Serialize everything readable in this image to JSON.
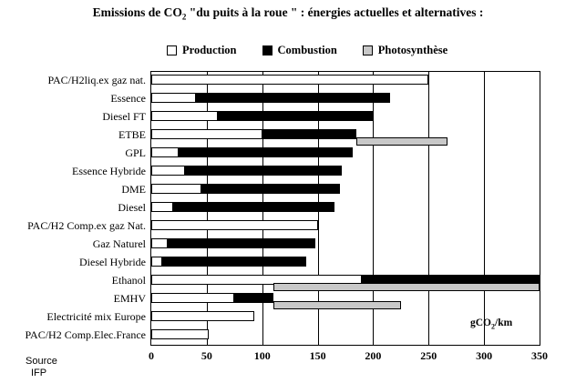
{
  "title": {
    "pre": "Emissions de CO",
    "sub": "2",
    "post": " \"du puits à la roue \" : énergies actuelles et alternatives :"
  },
  "legend": [
    {
      "label": "Production",
      "color": "#ffffff"
    },
    {
      "label": "Combustion",
      "color": "#000000"
    },
    {
      "label": "Photosynthèse",
      "color": "#c8c8c8"
    }
  ],
  "axis": {
    "ticks": [
      0,
      50,
      100,
      150,
      200,
      250,
      300,
      350
    ],
    "unit_pre": "gCO",
    "unit_sub": "2",
    "unit_post": "/km"
  },
  "source": {
    "line1": "Source",
    "line2": "IFP"
  },
  "chart_data": {
    "type": "bar",
    "orientation": "horizontal",
    "stacked": true,
    "title": "Emissions de CO2 \"du puits à la roue \" : énergies actuelles et alternatives :",
    "xlabel": "gCO2/km",
    "xlim": [
      0,
      350
    ],
    "grid": true,
    "legend_position": "top",
    "series_names": [
      "Production",
      "Combustion",
      "Photosynthèse"
    ],
    "rows": [
      {
        "label": "PAC/H2liq.ex gaz nat.",
        "production": [
          0,
          250
        ],
        "combustion": null,
        "photosynthese": null
      },
      {
        "label": "Essence",
        "production": [
          0,
          40
        ],
        "combustion": [
          40,
          215
        ],
        "photosynthese": null
      },
      {
        "label": "Diesel FT",
        "production": [
          0,
          60
        ],
        "combustion": [
          60,
          200
        ],
        "photosynthese": null
      },
      {
        "label": "ETBE",
        "production": [
          0,
          100
        ],
        "combustion": [
          100,
          185
        ],
        "photosynthese": [
          185,
          267
        ]
      },
      {
        "label": "GPL",
        "production": [
          0,
          25
        ],
        "combustion": [
          25,
          182
        ],
        "photosynthese": null
      },
      {
        "label": "Essence Hybride",
        "production": [
          0,
          30
        ],
        "combustion": [
          30,
          172
        ],
        "photosynthese": null
      },
      {
        "label": "DME",
        "production": [
          0,
          45
        ],
        "combustion": [
          45,
          170
        ],
        "photosynthese": null
      },
      {
        "label": "Diesel",
        "production": [
          0,
          20
        ],
        "combustion": [
          20,
          165
        ],
        "photosynthese": null
      },
      {
        "label": "PAC/H2 Comp.ex gaz Nat.",
        "production": [
          0,
          150
        ],
        "combustion": null,
        "photosynthese": null
      },
      {
        "label": "Gaz Naturel",
        "production": [
          0,
          15
        ],
        "combustion": [
          15,
          148
        ],
        "photosynthese": null
      },
      {
        "label": "Diesel Hybride",
        "production": [
          0,
          10
        ],
        "combustion": [
          10,
          140
        ],
        "photosynthese": null
      },
      {
        "label": "Ethanol",
        "production": [
          0,
          190
        ],
        "combustion": [
          190,
          350
        ],
        "photosynthese": [
          110,
          350
        ]
      },
      {
        "label": "EMHV",
        "production": [
          0,
          75
        ],
        "combustion": [
          75,
          110
        ],
        "photosynthese": [
          110,
          225
        ]
      },
      {
        "label": "Electricité mix Europe",
        "production": [
          0,
          93
        ],
        "combustion": null,
        "photosynthese": null
      },
      {
        "label": "PAC/H2 Comp.Elec.France",
        "production": [
          0,
          52
        ],
        "combustion": null,
        "photosynthese": null
      }
    ]
  }
}
